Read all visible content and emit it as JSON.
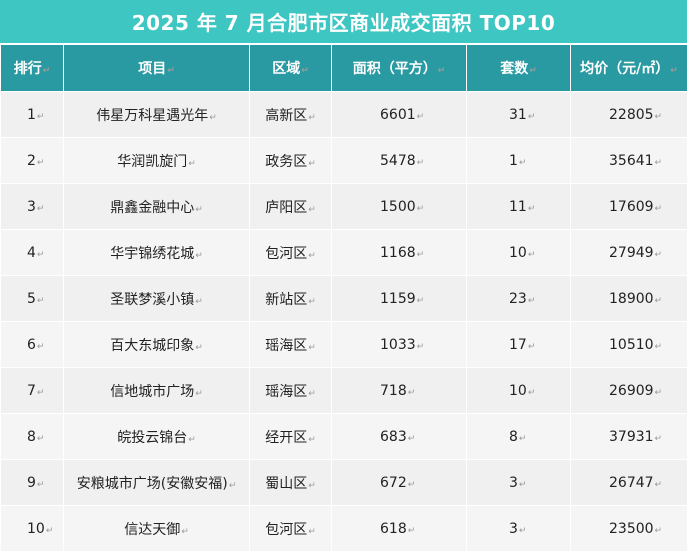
{
  "title": "2025 年 7 月合肥市区商业成交面积 TOP10",
  "para_mark": "↵",
  "headers": {
    "rank": "排行",
    "project": "项目",
    "district": "区域",
    "area": "面积（平方）",
    "sets": "套数",
    "price": "均价（元/㎡）"
  },
  "rows": [
    {
      "rank": "1",
      "project": "伟星万科星遇光年",
      "district": "高新区",
      "area": "6601",
      "sets": "31",
      "price": "22805"
    },
    {
      "rank": "2",
      "project": "华润凯旋门",
      "district": "政务区",
      "area": "5478",
      "sets": "1",
      "price": "35641"
    },
    {
      "rank": "3",
      "project": "鼎鑫金融中心",
      "district": "庐阳区",
      "area": "1500",
      "sets": "11",
      "price": "17609"
    },
    {
      "rank": "4",
      "project": "华宇锦绣花城",
      "district": "包河区",
      "area": "1168",
      "sets": "10",
      "price": "27949"
    },
    {
      "rank": "5",
      "project": "圣联梦溪小镇",
      "district": "新站区",
      "area": "1159",
      "sets": "23",
      "price": "18900"
    },
    {
      "rank": "6",
      "project": "百大东城印象",
      "district": "瑶海区",
      "area": "1033",
      "sets": "17",
      "price": "10510"
    },
    {
      "rank": "7",
      "project": "信地城市广场",
      "district": "瑶海区",
      "area": "718",
      "sets": "10",
      "price": "26909"
    },
    {
      "rank": "8",
      "project": "皖投云锦台",
      "district": "经开区",
      "area": "683",
      "sets": "8",
      "price": "37931"
    },
    {
      "rank": "9",
      "project": "安粮城市广场(安徽安福)",
      "district": "蜀山区",
      "area": "672",
      "sets": "3",
      "price": "26747"
    },
    {
      "rank": "10",
      "project": "信达天御",
      "district": "包河区",
      "area": "618",
      "sets": "3",
      "price": "23500"
    }
  ]
}
